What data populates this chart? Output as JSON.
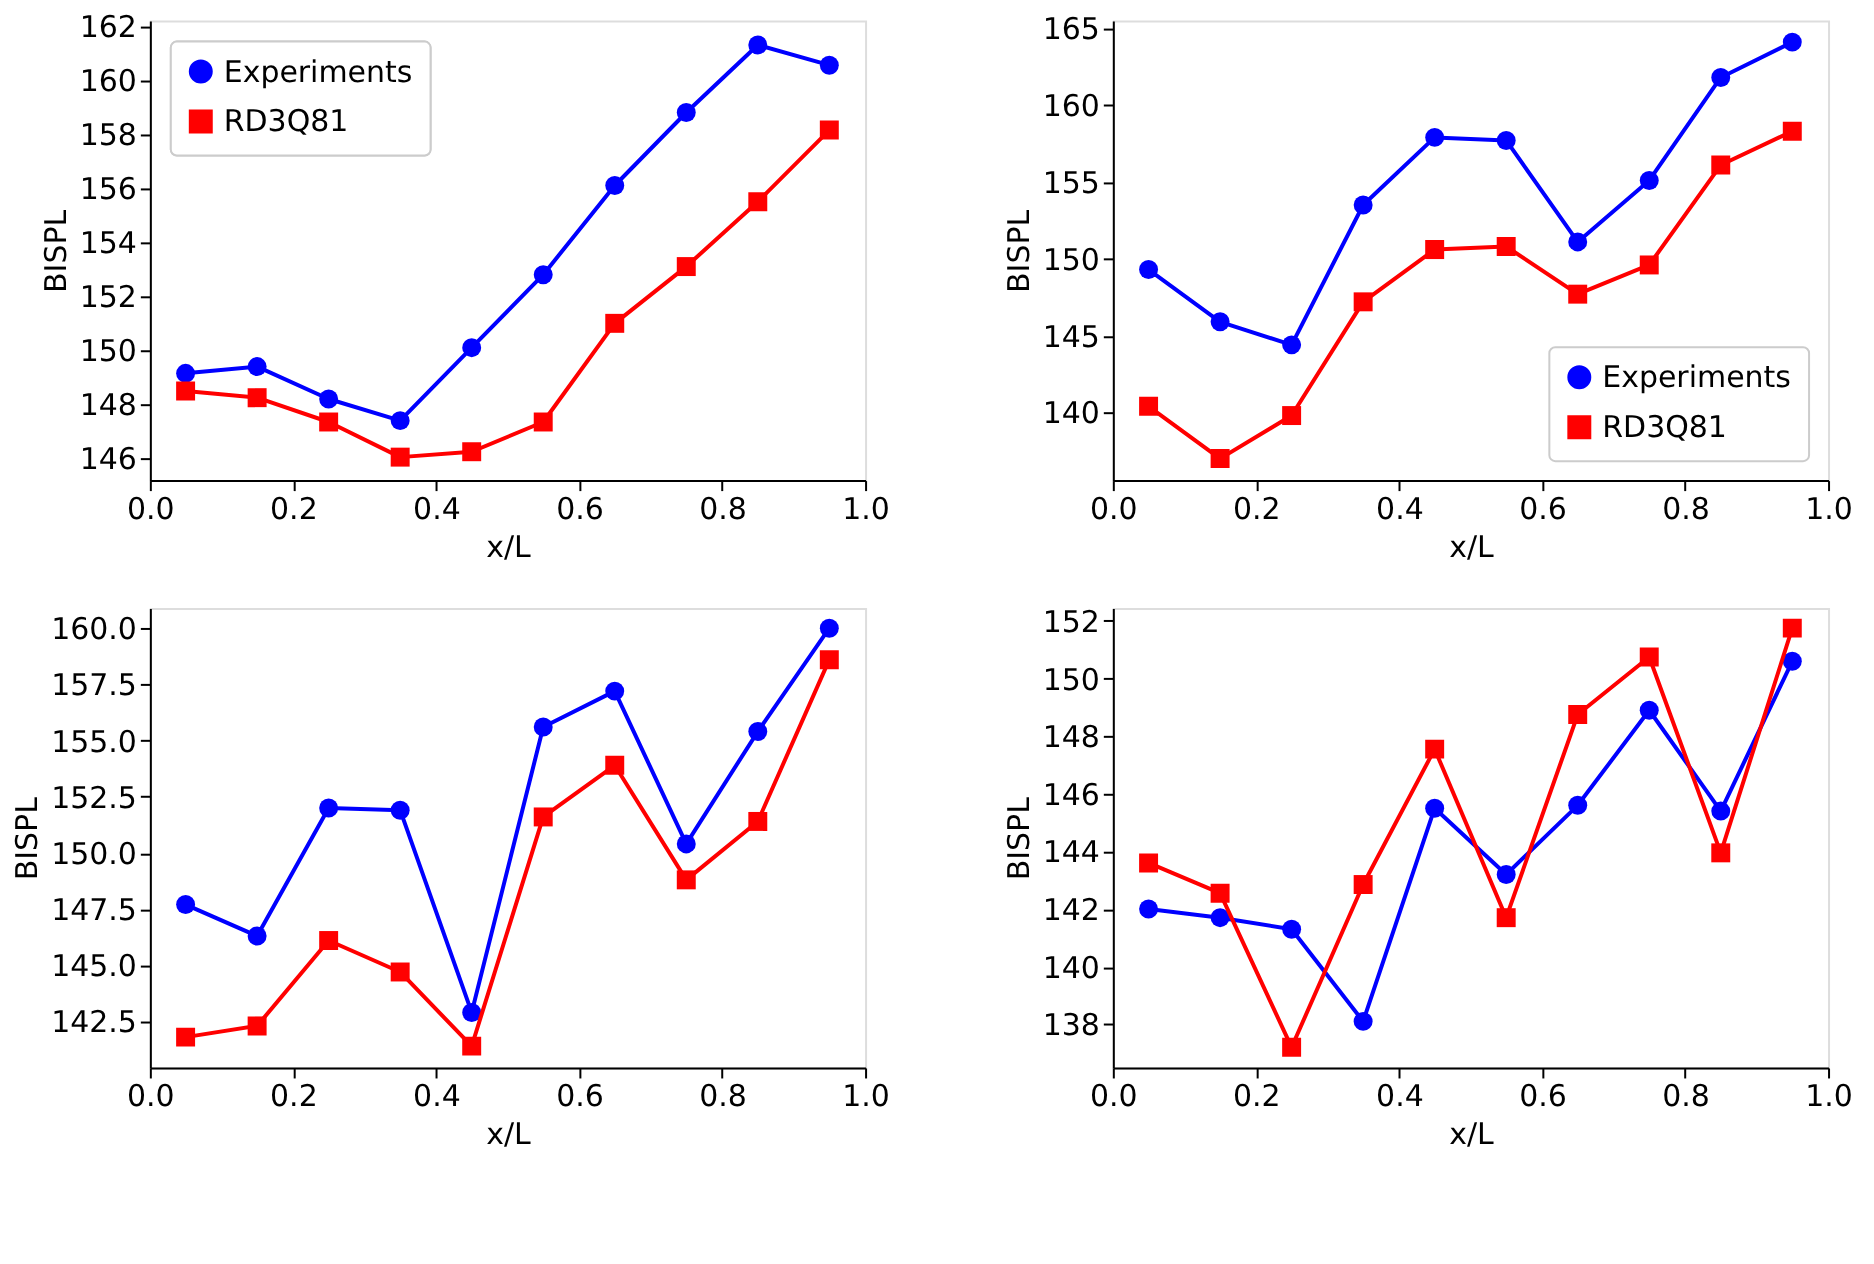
{
  "chart_data": [
    {
      "type": "line",
      "xlabel": "x/L",
      "ylabel": "BISPL",
      "legend": "top left",
      "grid": false,
      "line_style": "solid",
      "x": [
        0.05,
        0.15,
        0.25,
        0.35,
        0.45,
        0.55,
        0.65,
        0.75,
        0.85,
        0.95
      ],
      "xlim": [
        0.0,
        1.0
      ],
      "xticks": [
        {
          "value": 0,
          "label": "0.0"
        },
        {
          "value": 0.2,
          "label": "0.2"
        },
        {
          "value": 0.4,
          "label": "0.4"
        },
        {
          "value": 0.6,
          "label": "0.6"
        },
        {
          "value": 0.8,
          "label": "0.8"
        },
        {
          "value": 1,
          "label": "1.0"
        }
      ],
      "ylim": [
        145.2,
        162.2
      ],
      "yticks": [
        146,
        148,
        150,
        152,
        154,
        156,
        158,
        160,
        162
      ],
      "series": [
        {
          "name": "Experiments",
          "color": "#0000ff",
          "marker": "circle",
          "values": [
            149.15,
            149.4,
            148.2,
            147.4,
            150.1,
            152.8,
            156.1,
            158.8,
            161.3,
            160.55
          ]
        },
        {
          "name": "RD3Q81",
          "color": "#ff0000",
          "marker": "square",
          "values": [
            148.5,
            148.25,
            147.35,
            146.05,
            146.25,
            147.35,
            151.0,
            153.1,
            155.5,
            158.15
          ]
        }
      ]
    },
    {
      "type": "line",
      "xlabel": "x/L",
      "ylabel": "BISPL",
      "legend": "bottom right",
      "grid": false,
      "line_style": "solid",
      "x": [
        0.05,
        0.15,
        0.25,
        0.35,
        0.45,
        0.55,
        0.65,
        0.75,
        0.85,
        0.95
      ],
      "xlim": [
        0.0,
        1.0
      ],
      "xticks": [
        {
          "value": 0,
          "label": "0.0"
        },
        {
          "value": 0.2,
          "label": "0.2"
        },
        {
          "value": 0.4,
          "label": "0.4"
        },
        {
          "value": 0.6,
          "label": "0.6"
        },
        {
          "value": 0.8,
          "label": "0.8"
        },
        {
          "value": 1,
          "label": "1.0"
        }
      ],
      "ylim": [
        135.6,
        165.5
      ],
      "yticks": [
        140,
        145,
        150,
        155,
        160,
        165
      ],
      "series": [
        {
          "name": "Experiments",
          "color": "#0000ff",
          "marker": "circle",
          "values": [
            149.3,
            145.9,
            144.4,
            153.5,
            157.9,
            157.7,
            151.1,
            155.1,
            161.8,
            164.1
          ]
        },
        {
          "name": "RD3Q81",
          "color": "#ff0000",
          "marker": "square",
          "values": [
            140.4,
            137.0,
            139.8,
            147.2,
            150.6,
            150.8,
            147.7,
            149.6,
            156.1,
            158.3
          ]
        }
      ]
    },
    {
      "type": "line",
      "xlabel": "x/L",
      "ylabel": "BISPL",
      "legend": "top left",
      "grid": false,
      "line_style": "solid",
      "x": [
        0.05,
        0.15,
        0.25,
        0.35,
        0.45,
        0.55,
        0.65,
        0.75,
        0.85,
        0.95
      ],
      "xlim": [
        0.0,
        1.0
      ],
      "xticks": [
        {
          "value": 0,
          "label": "0.0"
        },
        {
          "value": 0.2,
          "label": "0.2"
        },
        {
          "value": 0.4,
          "label": "0.4"
        },
        {
          "value": 0.6,
          "label": "0.6"
        },
        {
          "value": 0.8,
          "label": "0.8"
        },
        {
          "value": 1,
          "label": "1.0"
        }
      ],
      "ylim": [
        140.45,
        160.9
      ],
      "yticks": [
        {
          "value": 142.5,
          "label": "142.5"
        },
        {
          "value": 145,
          "label": "145.0"
        },
        {
          "value": 147.5,
          "label": "147.5"
        },
        {
          "value": 150,
          "label": "150.0"
        },
        {
          "value": 152.5,
          "label": "152.5"
        },
        {
          "value": 155,
          "label": "155.0"
        },
        {
          "value": 157.5,
          "label": "157.5"
        },
        {
          "value": 160,
          "label": "160.0"
        }
      ],
      "series": [
        {
          "name": "Experiments",
          "color": "#0000ff",
          "marker": "circle",
          "values": [
            147.7,
            146.3,
            152.0,
            151.9,
            142.9,
            155.6,
            157.2,
            150.4,
            155.4,
            160.0
          ]
        },
        {
          "name": "RD3Q81",
          "color": "#ff0000",
          "marker": "square",
          "values": [
            141.8,
            142.3,
            146.1,
            144.7,
            141.4,
            151.6,
            153.9,
            148.8,
            151.4,
            158.6
          ]
        }
      ]
    },
    {
      "type": "line",
      "xlabel": "x/L",
      "ylabel": "BISPL",
      "legend": "top left",
      "grid": false,
      "line_style": "solid",
      "x": [
        0.05,
        0.15,
        0.25,
        0.35,
        0.45,
        0.55,
        0.65,
        0.75,
        0.85,
        0.95
      ],
      "xlim": [
        0.0,
        1.0
      ],
      "xticks": [
        {
          "value": 0,
          "label": "0.0"
        },
        {
          "value": 0.2,
          "label": "0.2"
        },
        {
          "value": 0.4,
          "label": "0.4"
        },
        {
          "value": 0.6,
          "label": "0.6"
        },
        {
          "value": 0.8,
          "label": "0.8"
        },
        {
          "value": 1,
          "label": "1.0"
        }
      ],
      "ylim": [
        136.5,
        152.45
      ],
      "yticks": [
        138,
        140,
        142,
        144,
        146,
        148,
        150,
        152
      ],
      "series": [
        {
          "name": "Experiments",
          "color": "#0000ff",
          "marker": "circle",
          "values": [
            142.0,
            141.7,
            141.3,
            138.1,
            145.5,
            143.2,
            145.6,
            148.9,
            145.4,
            150.6
          ]
        },
        {
          "name": "RD3Q81",
          "color": "#ff0000",
          "marker": "square",
          "values": [
            143.6,
            142.55,
            137.2,
            142.85,
            147.55,
            141.7,
            148.75,
            150.75,
            143.95,
            151.75
          ]
        }
      ]
    }
  ]
}
